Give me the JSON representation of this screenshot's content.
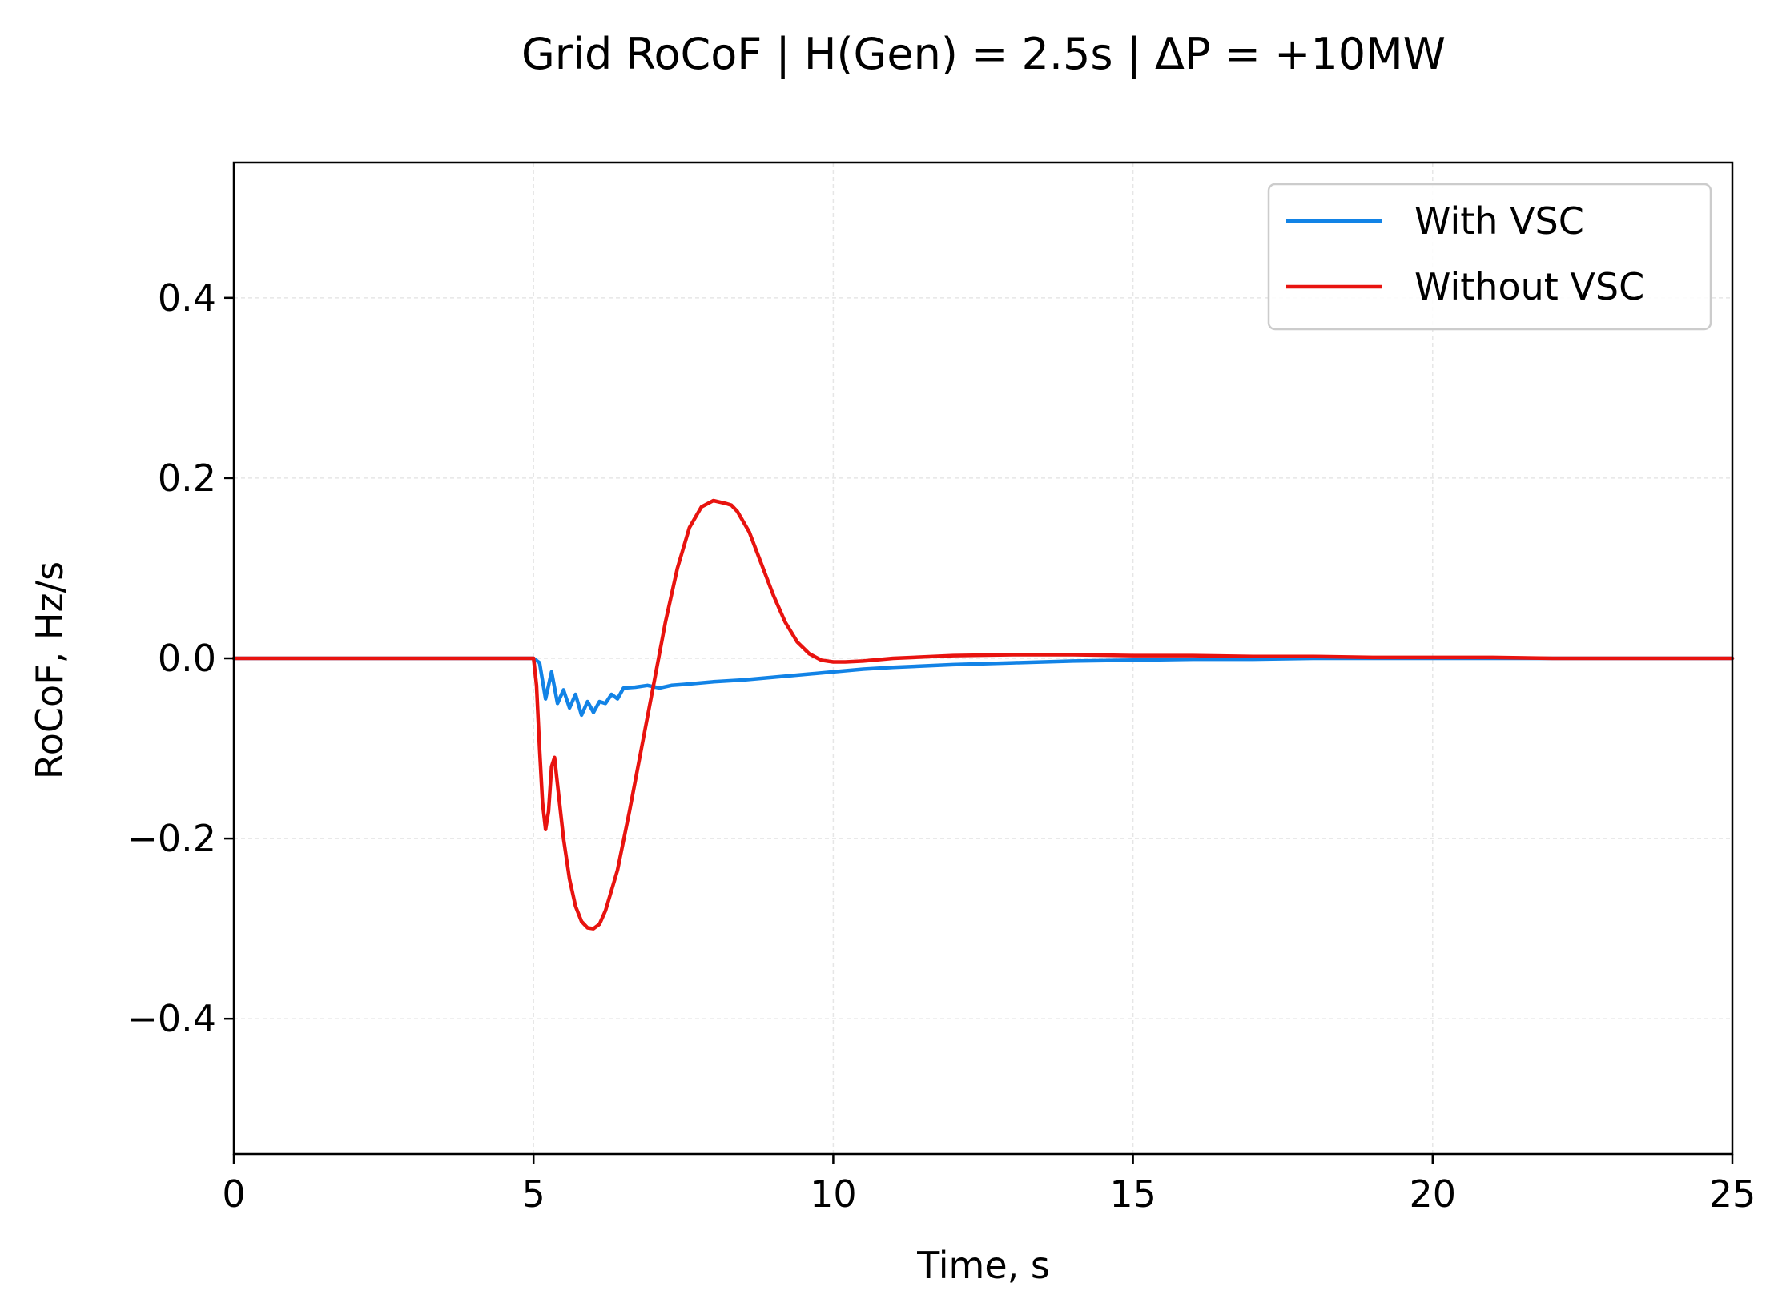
{
  "chart_data": {
    "type": "line",
    "title": "Grid RoCoF  |  H(Gen) = 2.5s  |  ΔP = +10MW",
    "xlabel": "Time, s",
    "ylabel": "RoCoF, Hz/s",
    "xlim": [
      0,
      25
    ],
    "ylim": [
      -0.55,
      0.55
    ],
    "xticks": [
      0,
      5,
      10,
      15,
      20,
      25
    ],
    "xtick_labels": [
      "0",
      "5",
      "10",
      "15",
      "20",
      "25"
    ],
    "yticks": [
      -0.4,
      -0.2,
      0.0,
      0.2,
      0.4
    ],
    "ytick_labels": [
      "−0.4",
      "−0.2",
      "0.0",
      "0.2",
      "0.4"
    ],
    "grid": true,
    "legend_position": "top-right",
    "series": [
      {
        "name": "With VSC",
        "color": "#1283e6",
        "x": [
          0,
          1,
          2,
          3,
          4,
          4.9,
          5.0,
          5.1,
          5.2,
          5.3,
          5.4,
          5.5,
          5.6,
          5.7,
          5.8,
          5.9,
          6.0,
          6.1,
          6.2,
          6.3,
          6.4,
          6.5,
          6.7,
          6.9,
          7.1,
          7.3,
          7.5,
          8.0,
          8.5,
          9.0,
          9.5,
          10.0,
          10.5,
          11.0,
          12.0,
          13.0,
          14.0,
          15.0,
          16.0,
          17.0,
          18.0,
          19.0,
          20.0,
          21.0,
          22.0,
          23.0,
          24.0,
          25.0
        ],
        "y": [
          0.0,
          0.0,
          0.0,
          0.0,
          0.0,
          0.0,
          0.0,
          -0.005,
          -0.045,
          -0.015,
          -0.05,
          -0.035,
          -0.055,
          -0.04,
          -0.063,
          -0.048,
          -0.06,
          -0.048,
          -0.05,
          -0.04,
          -0.045,
          -0.033,
          -0.032,
          -0.03,
          -0.033,
          -0.03,
          -0.029,
          -0.026,
          -0.024,
          -0.021,
          -0.018,
          -0.015,
          -0.012,
          -0.01,
          -0.007,
          -0.005,
          -0.003,
          -0.002,
          -0.001,
          -0.001,
          0.0,
          0.0,
          0.0,
          0.0,
          0.0,
          0.0,
          0.0,
          0.0
        ]
      },
      {
        "name": "Without VSC",
        "color": "#e8130f",
        "x": [
          0,
          1,
          2,
          3,
          4,
          4.9,
          5.0,
          5.05,
          5.1,
          5.15,
          5.2,
          5.25,
          5.3,
          5.35,
          5.4,
          5.5,
          5.6,
          5.7,
          5.8,
          5.9,
          6.0,
          6.1,
          6.2,
          6.4,
          6.6,
          6.8,
          7.0,
          7.2,
          7.4,
          7.6,
          7.8,
          8.0,
          8.2,
          8.3,
          8.4,
          8.6,
          8.8,
          9.0,
          9.2,
          9.4,
          9.6,
          9.8,
          10.0,
          10.2,
          10.5,
          11.0,
          12.0,
          13.0,
          14.0,
          15.0,
          16.0,
          17.0,
          18.0,
          19.0,
          20.0,
          21.0,
          22.0,
          23.0,
          24.0,
          25.0
        ],
        "y": [
          0.0,
          0.0,
          0.0,
          0.0,
          0.0,
          0.0,
          0.0,
          -0.03,
          -0.1,
          -0.16,
          -0.19,
          -0.17,
          -0.12,
          -0.11,
          -0.14,
          -0.2,
          -0.245,
          -0.275,
          -0.292,
          -0.299,
          -0.3,
          -0.295,
          -0.28,
          -0.235,
          -0.17,
          -0.1,
          -0.03,
          0.04,
          0.1,
          0.145,
          0.168,
          0.175,
          0.172,
          0.17,
          0.163,
          0.14,
          0.105,
          0.07,
          0.04,
          0.018,
          0.005,
          -0.002,
          -0.004,
          -0.004,
          -0.003,
          0.0,
          0.003,
          0.004,
          0.004,
          0.003,
          0.003,
          0.002,
          0.002,
          0.001,
          0.001,
          0.001,
          0.0,
          0.0,
          0.0,
          0.0
        ]
      }
    ]
  }
}
